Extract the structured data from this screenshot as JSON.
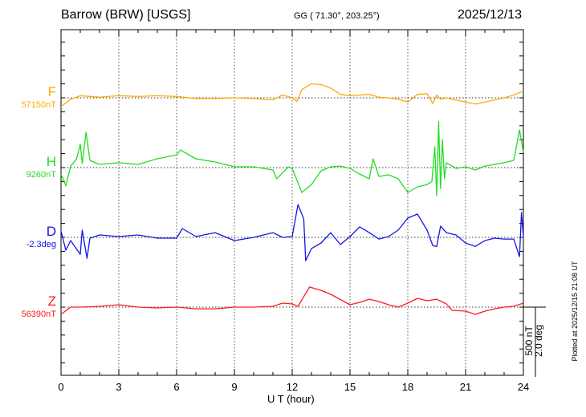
{
  "header": {
    "station": "Barrow (BRW)  [USGS]",
    "coords": "GG ( 71.30°, 203.25°)",
    "date": "2025/12/13"
  },
  "side": {
    "scale_nt": "500 nT",
    "scale_deg": "2.0 deg",
    "plotted": "Plotted at 2025/12/15 21:08 UT"
  },
  "chart_data": {
    "type": "line",
    "xlabel": "U T (hour)",
    "xlim": [
      0,
      24
    ],
    "xticks": [
      "0",
      "3",
      "6",
      "9",
      "12",
      "15",
      "18",
      "21",
      "24"
    ],
    "grid": "dotted vertical lines every 3 h, dotted baseline per component",
    "units_note": "values are deviations from each component's baseline in nT (D in nT-equivalent; 500 nT = 2.0 deg)",
    "series": [
      {
        "name": "F",
        "baseline_label": "57150nT",
        "color": "#ffaa00",
        "x": [
          0,
          0.5,
          1,
          1.5,
          2,
          3,
          4,
          5,
          6,
          7,
          8,
          9,
          10,
          11,
          11.5,
          12,
          12.25,
          12.5,
          13,
          13.5,
          14,
          14.5,
          15,
          15.5,
          16,
          16.5,
          17,
          17.5,
          18,
          18.5,
          19,
          19.3,
          19.5,
          19.7,
          20,
          20.5,
          21,
          21.5,
          22,
          22.5,
          23,
          23.5,
          24
        ],
        "y": [
          -63,
          -10,
          15,
          10,
          5,
          15,
          10,
          15,
          10,
          -5,
          -5,
          0,
          -5,
          -15,
          20,
          0,
          -25,
          60,
          100,
          95,
          70,
          25,
          15,
          20,
          25,
          5,
          0,
          -10,
          -30,
          25,
          30,
          -40,
          20,
          -10,
          0,
          -15,
          -30,
          -45,
          -30,
          -15,
          0,
          20,
          50
        ]
      },
      {
        "name": "H",
        "baseline_label": "9260nT",
        "color": "#22dd22",
        "x": [
          0,
          0.25,
          0.5,
          0.8,
          1,
          1.1,
          1.3,
          1.5,
          2,
          3,
          4,
          5,
          6,
          6.2,
          7,
          8,
          9,
          10,
          11,
          11.2,
          11.8,
          12,
          12.5,
          13,
          13.5,
          14,
          14.5,
          15,
          15.5,
          16,
          16.2,
          16.5,
          17,
          17.5,
          18,
          18.5,
          19,
          19.25,
          19.4,
          19.5,
          19.6,
          19.7,
          19.8,
          19.9,
          20,
          20.5,
          21,
          21.5,
          22,
          22.5,
          23,
          23.5,
          23.8,
          24
        ],
        "y": [
          -46,
          -130,
          11,
          60,
          167,
          30,
          253,
          52,
          23,
          35,
          23,
          63,
          92,
          126,
          63,
          40,
          6,
          6,
          -17,
          -80,
          6,
          -6,
          -178,
          -121,
          -23,
          6,
          11,
          -6,
          -46,
          -80,
          63,
          -63,
          -52,
          -80,
          -178,
          -138,
          -121,
          -100,
          150,
          -200,
          330,
          -150,
          200,
          -80,
          35,
          -6,
          6,
          -17,
          11,
          23,
          35,
          52,
          270,
          110
        ]
      },
      {
        "name": "D",
        "baseline_label": "-2.3deg",
        "color": "#1515e8",
        "x": [
          0,
          0.25,
          0.5,
          1,
          1.1,
          1.35,
          1.5,
          2,
          3,
          4,
          5,
          6,
          6.3,
          7,
          8,
          9,
          10,
          11,
          11.5,
          12,
          12.3,
          12.6,
          12.7,
          13,
          13.5,
          14,
          14.5,
          15,
          15.5,
          16,
          16.5,
          17,
          17.5,
          18,
          18.5,
          19,
          19.3,
          19.5,
          19.7,
          20,
          20.5,
          21,
          21.5,
          22,
          22.5,
          23,
          23.5,
          23.8,
          23.9,
          24
        ],
        "y": [
          46,
          -92,
          -23,
          -121,
          52,
          -150,
          -6,
          17,
          6,
          17,
          -6,
          -6,
          63,
          6,
          34,
          -23,
          0,
          34,
          0,
          6,
          235,
          132,
          -167,
          -80,
          -40,
          34,
          -52,
          6,
          75,
          34,
          -12,
          6,
          52,
          138,
          167,
          52,
          -60,
          -65,
          80,
          34,
          17,
          -40,
          -65,
          -23,
          -6,
          -12,
          -12,
          -138,
          178,
          0
        ]
      },
      {
        "name": "Z",
        "baseline_label": "56390nT",
        "color": "#ff1a1a",
        "x": [
          0,
          0.5,
          1,
          2,
          3,
          4,
          5,
          6,
          7,
          8,
          9,
          10,
          11,
          11.5,
          12,
          12.3,
          12.6,
          12.9,
          13.5,
          14,
          15,
          15.5,
          16,
          16.5,
          17,
          17.5,
          18,
          18.5,
          19,
          19.5,
          20,
          20.3,
          21,
          21.5,
          22,
          22.5,
          23,
          23.5,
          24
        ],
        "y": [
          -52,
          0,
          0,
          6,
          17,
          0,
          -6,
          0,
          -12,
          -12,
          0,
          0,
          6,
          29,
          23,
          6,
          75,
          144,
          120,
          92,
          17,
          34,
          57,
          40,
          17,
          0,
          29,
          63,
          46,
          57,
          23,
          -23,
          -29,
          -52,
          -29,
          -12,
          0,
          6,
          29
        ]
      }
    ]
  }
}
